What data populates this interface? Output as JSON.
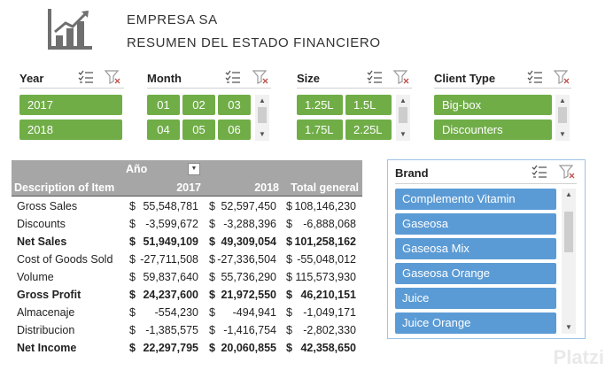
{
  "header": {
    "company": "EMPRESA SA",
    "subtitle": "RESUMEN DEL ESTADO FINANCIERO"
  },
  "slicers": {
    "year": {
      "title": "Year",
      "items": [
        "2017",
        "2018"
      ]
    },
    "month": {
      "title": "Month",
      "items": [
        "01",
        "02",
        "03",
        "04",
        "05",
        "06"
      ]
    },
    "size": {
      "title": "Size",
      "items": [
        "1.25L",
        "1.5L",
        "1.75L",
        "2.25L"
      ]
    },
    "client": {
      "title": "Client Type",
      "items": [
        "Big-box",
        "Discounters"
      ]
    }
  },
  "pivot": {
    "col_field": "Año",
    "row_header": "Description of Item",
    "col_headers": [
      "2017",
      "2018",
      "Total general"
    ],
    "currency": "$",
    "rows": [
      {
        "label": "Gross Sales",
        "v": [
          "55,548,781",
          "52,597,450",
          "108,146,230"
        ],
        "bold": false
      },
      {
        "label": "Discounts",
        "v": [
          "-3,599,672",
          "-3,288,396",
          "-6,888,068"
        ],
        "bold": false
      },
      {
        "label": "Net Sales",
        "v": [
          "51,949,109",
          "49,309,054",
          "101,258,162"
        ],
        "bold": true
      },
      {
        "label": "Cost of Goods Sold",
        "v": [
          "-27,711,508",
          "-27,336,504",
          "-55,048,012"
        ],
        "bold": false
      },
      {
        "label": "Volume",
        "v": [
          "59,837,640",
          "55,736,290",
          "115,573,930"
        ],
        "bold": false
      },
      {
        "label": "Gross Profit",
        "v": [
          "24,237,600",
          "21,972,550",
          "46,210,151"
        ],
        "bold": true
      },
      {
        "label": "Almacenaje",
        "v": [
          "-554,230",
          "-494,941",
          "-1,049,171"
        ],
        "bold": false
      },
      {
        "label": "Distribucion",
        "v": [
          "-1,385,575",
          "-1,416,754",
          "-2,802,330"
        ],
        "bold": false
      },
      {
        "label": "Net Income",
        "v": [
          "22,297,795",
          "20,060,855",
          "42,358,650"
        ],
        "bold": true
      }
    ]
  },
  "brand": {
    "title": "Brand",
    "items": [
      "Complemento Vitamin",
      "Gaseosa",
      "Gaseosa Mix",
      "Gaseosa Orange",
      "Juice",
      "Juice Orange"
    ]
  },
  "watermark": "Platzi",
  "colors": {
    "slicer_green": "#70ad47",
    "brand_blue": "#5b9bd5",
    "header_gray": "#a6a6a6"
  }
}
